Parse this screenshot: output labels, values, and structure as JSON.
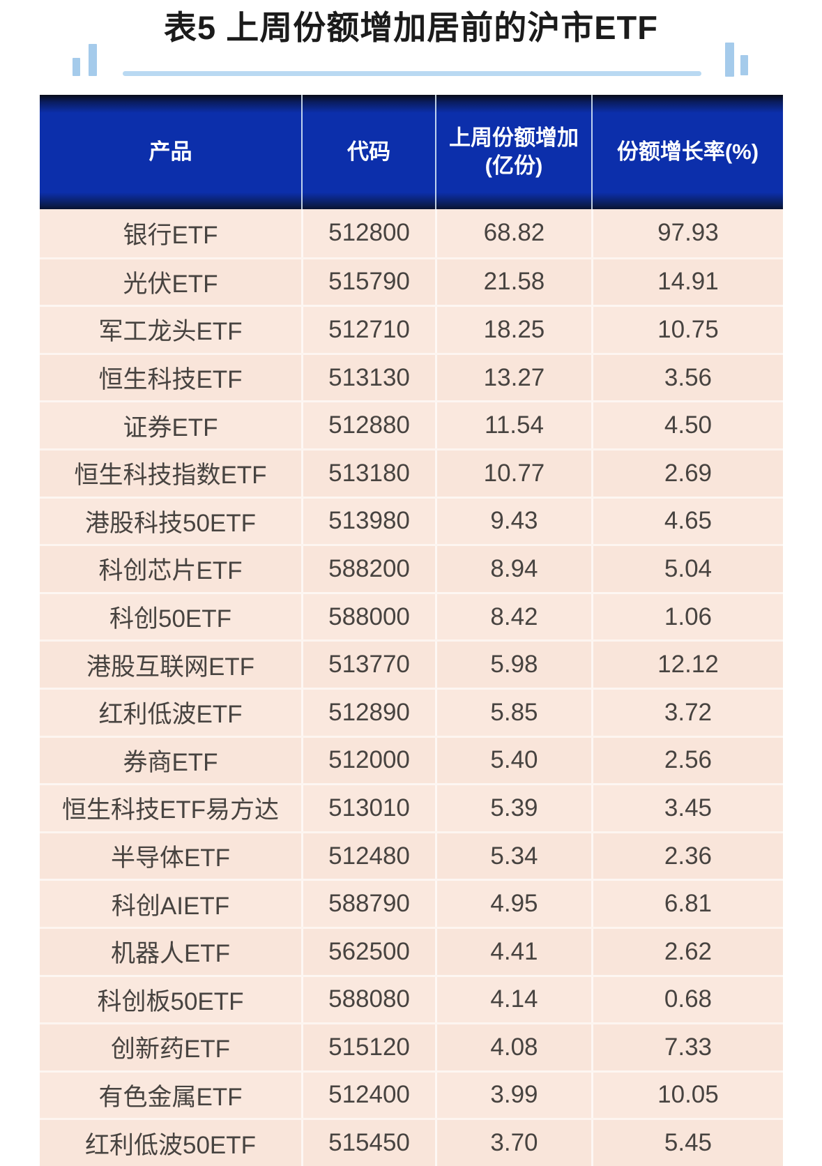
{
  "title": "表5 上周份额增加居前的沪市ETF",
  "table": {
    "columns": {
      "product": "产品",
      "code": "代码",
      "increase_line1": "上周份额增加",
      "increase_line2": "(亿份)",
      "rate": "份额增长率(%)"
    },
    "rows": [
      {
        "product": "银行ETF",
        "code": "512800",
        "increase": "68.82",
        "rate": "97.93"
      },
      {
        "product": "光伏ETF",
        "code": "515790",
        "increase": "21.58",
        "rate": "14.91"
      },
      {
        "product": "军工龙头ETF",
        "code": "512710",
        "increase": "18.25",
        "rate": "10.75"
      },
      {
        "product": "恒生科技ETF",
        "code": "513130",
        "increase": "13.27",
        "rate": "3.56"
      },
      {
        "product": "证券ETF",
        "code": "512880",
        "increase": "11.54",
        "rate": "4.50"
      },
      {
        "product": "恒生科技指数ETF",
        "code": "513180",
        "increase": "10.77",
        "rate": "2.69"
      },
      {
        "product": "港股科技50ETF",
        "code": "513980",
        "increase": "9.43",
        "rate": "4.65"
      },
      {
        "product": "科创芯片ETF",
        "code": "588200",
        "increase": "8.94",
        "rate": "5.04"
      },
      {
        "product": "科创50ETF",
        "code": "588000",
        "increase": "8.42",
        "rate": "1.06"
      },
      {
        "product": "港股互联网ETF",
        "code": "513770",
        "increase": "5.98",
        "rate": "12.12"
      },
      {
        "product": "红利低波ETF",
        "code": "512890",
        "increase": "5.85",
        "rate": "3.72"
      },
      {
        "product": "券商ETF",
        "code": "512000",
        "increase": "5.40",
        "rate": "2.56"
      },
      {
        "product": "恒生科技ETF易方达",
        "code": "513010",
        "increase": "5.39",
        "rate": "3.45"
      },
      {
        "product": "半导体ETF",
        "code": "512480",
        "increase": "5.34",
        "rate": "2.36"
      },
      {
        "product": "科创AIETF",
        "code": "588790",
        "increase": "4.95",
        "rate": "6.81"
      },
      {
        "product": "机器人ETF",
        "code": "562500",
        "increase": "4.41",
        "rate": "2.62"
      },
      {
        "product": "科创板50ETF",
        "code": "588080",
        "increase": "4.14",
        "rate": "0.68"
      },
      {
        "product": "创新药ETF",
        "code": "515120",
        "increase": "4.08",
        "rate": "7.33"
      },
      {
        "product": "有色金属ETF",
        "code": "512400",
        "increase": "3.99",
        "rate": "10.05"
      },
      {
        "product": "红利低波50ETF",
        "code": "515450",
        "increase": "3.70",
        "rate": "5.45"
      }
    ]
  },
  "colors": {
    "header_bg": "#0c2fab",
    "header_text": "#ffffff",
    "row_bg_odd": "#fae8de",
    "row_bg_even": "#f9e5da",
    "accent_blue": "#a5cbeb",
    "underline_blue": "#b9d9f2",
    "title_text": "#1b1b1b",
    "body_text": "#474340"
  },
  "chart_data": {
    "type": "table",
    "title": "表5 上周份额增加居前的沪市ETF",
    "columns": [
      "产品",
      "代码",
      "上周份额增加(亿份)",
      "份额增长率(%)"
    ],
    "rows": [
      [
        "银行ETF",
        "512800",
        68.82,
        97.93
      ],
      [
        "光伏ETF",
        "515790",
        21.58,
        14.91
      ],
      [
        "军工龙头ETF",
        "512710",
        18.25,
        10.75
      ],
      [
        "恒生科技ETF",
        "513130",
        13.27,
        3.56
      ],
      [
        "证券ETF",
        "512880",
        11.54,
        4.5
      ],
      [
        "恒生科技指数ETF",
        "513180",
        10.77,
        2.69
      ],
      [
        "港股科技50ETF",
        "513980",
        9.43,
        4.65
      ],
      [
        "科创芯片ETF",
        "588200",
        8.94,
        5.04
      ],
      [
        "科创50ETF",
        "588000",
        8.42,
        1.06
      ],
      [
        "港股互联网ETF",
        "513770",
        5.98,
        12.12
      ],
      [
        "红利低波ETF",
        "512890",
        5.85,
        3.72
      ],
      [
        "券商ETF",
        "512000",
        5.4,
        2.56
      ],
      [
        "恒生科技ETF易方达",
        "513010",
        5.39,
        3.45
      ],
      [
        "半导体ETF",
        "512480",
        5.34,
        2.36
      ],
      [
        "科创AIETF",
        "588790",
        4.95,
        6.81
      ],
      [
        "机器人ETF",
        "562500",
        4.41,
        2.62
      ],
      [
        "科创板50ETF",
        "588080",
        4.14,
        0.68
      ],
      [
        "创新药ETF",
        "515120",
        4.08,
        7.33
      ],
      [
        "有色金属ETF",
        "512400",
        3.99,
        10.05
      ],
      [
        "红利低波50ETF",
        "515450",
        3.7,
        5.45
      ]
    ]
  }
}
